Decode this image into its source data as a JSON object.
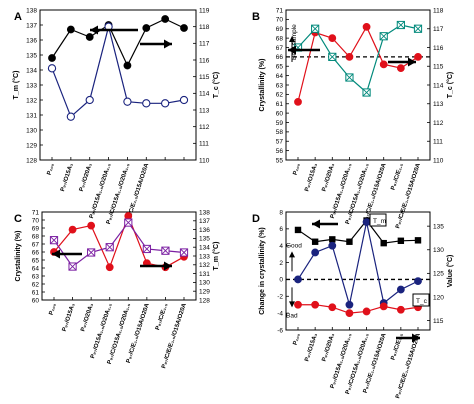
{
  "chart_data": [
    {
      "panel": "A",
      "type": "line",
      "categories": [
        "P100",
        "P97/O15A3",
        "P97/O20A3",
        "P97/O15A1.5/O20A1.5",
        "P97/C/O15A1.5/O20A1.5",
        "P97/C/E1.5/O15A1.5/O20A1.5",
        "P97/C/E/O15A1.5/O20A1.5",
        "P97/C/E/E1.5/O15A1.5/O20A1.5"
      ],
      "category_labels": [
        "P₁₀₀",
        "P₉₇/O15A₃",
        "P₉₇/O20A₃",
        "P₉₇/O15A₁.₅/O20A₁.₅",
        "P₉₇/C/O15A₁.₅/O20A₁.₅",
        "P₉₇/C/E₁.₅/O15A/O20A",
        "",
        ""
      ],
      "xlabel": "",
      "ylabel": "T_m (°C)",
      "y2label": "T_c (°C)",
      "ylim": [
        128,
        138
      ],
      "y2lim": [
        110,
        119
      ],
      "yticks": [
        128,
        129,
        130,
        131,
        132,
        133,
        134,
        135,
        136,
        137,
        138
      ],
      "y2ticks": [
        110,
        111,
        112,
        113,
        114,
        115,
        116,
        117,
        118,
        119
      ],
      "series": [
        {
          "axis": "left",
          "color": "#000000",
          "marker": "filled-circle",
          "values": [
            134.8,
            136.7,
            136.2,
            137.0,
            134.3,
            136.8,
            137.4,
            136.8
          ]
        },
        {
          "axis": "right",
          "color": "#1a237e",
          "marker": "open-circle",
          "values": [
            115.5,
            112.6,
            113.6,
            118.0,
            113.5,
            113.4,
            113.4,
            113.6
          ]
        }
      ],
      "arrows": [
        {
          "direction": "left",
          "target": "left-axis"
        },
        {
          "direction": "right",
          "target": "right-axis"
        }
      ]
    },
    {
      "panel": "B",
      "type": "line",
      "categories": [
        "P100",
        "P97/O15A3",
        "P97/O20A3",
        "P97/O15A1.5/O20A1.5",
        "P97/C/O15A1.5/O20A1.5",
        "P97/C/E1.5/O15A1.5/O20A1.5",
        "P97/C/E/O15A1.5/O20A1.5",
        "P97/C/E/E1.5/O15A1.5/O20A1.5"
      ],
      "category_labels": [
        "P₁₀₀",
        "P₉₇/O15A₃",
        "P₉₇/O20A₃",
        "P₉₇/O15A₁.₅/O20A₁.₅",
        "P₉₇/C/O15A₁.₅/O20A₁.₅",
        "P₉₇/C/E₁.₅/O15A/O20A",
        "P₉₇/C/E₁.₅",
        "P₉₇/C/E/E₁.₅/O15A/O20A"
      ],
      "xlabel": "",
      "ylabel": "Crystallinity (%)",
      "y2label": "T_c (°C)",
      "ylim": [
        55,
        71
      ],
      "y2lim": [
        110,
        118
      ],
      "yticks": [
        55,
        56,
        57,
        58,
        59,
        60,
        61,
        62,
        63,
        64,
        65,
        66,
        67,
        68,
        69,
        70,
        71
      ],
      "y2ticks": [
        110,
        111,
        112,
        113,
        114,
        115,
        116,
        117,
        118
      ],
      "annotations": [
        "Best sample"
      ],
      "reference_line": {
        "axis": "left",
        "value": 66
      },
      "series": [
        {
          "axis": "left",
          "color": "#e0101a",
          "marker": "filled-circle",
          "values": [
            61.2,
            68.6,
            68.0,
            66.0,
            69.2,
            65.2,
            64.8,
            66.0
          ]
        },
        {
          "axis": "right",
          "color": "#00897b",
          "marker": "crossed-square",
          "values": [
            116.0,
            117.0,
            115.5,
            114.4,
            113.6,
            116.6,
            117.2,
            117.0
          ]
        }
      ],
      "arrows": [
        {
          "direction": "left",
          "target": "left-axis"
        },
        {
          "direction": "right",
          "target": "right-axis"
        }
      ]
    },
    {
      "panel": "C",
      "type": "line",
      "categories": [
        "P100",
        "P97/O15A3",
        "P97/O20A3",
        "P97/O15A1.5/O20A1.5",
        "P97/C/O15A1.5/O20A1.5",
        "P97/C/E1.5/O15A1.5/O20A1.5",
        "P97/C/E/O15A1.5/O20A1.5",
        "P97/C/E/E1.5/O15A1.5/O20A1.5"
      ],
      "category_labels": [
        "P₁₀₀",
        "P₉₇/O15A₃",
        "P₉₇/O20A₃",
        "P₉₇/O15A₁.₅/O20A₁.₅",
        "P₉₇/C/O15A₁.₅/O20A₁.₅",
        "P₉₇/C/E₁.₅/O15A/O20A",
        "P₉₇/C/E₁.₅",
        "P₉₇/C/E/E₁.₅/O15A/O20A"
      ],
      "xlabel": "",
      "ylabel": "Crystalinity (%)",
      "y2label": "T_m (°C)",
      "ylim": [
        60,
        71
      ],
      "y2lim": [
        128,
        138
      ],
      "yticks": [
        60,
        61,
        62,
        63,
        64,
        65,
        66,
        67,
        68,
        69,
        70,
        71
      ],
      "y2ticks": [
        128,
        129,
        130,
        131,
        132,
        133,
        134,
        135,
        136,
        137,
        138
      ],
      "series": [
        {
          "axis": "left",
          "color": "#e0101a",
          "marker": "filled-circle",
          "values": [
            66.0,
            68.8,
            69.3,
            64.1,
            70.5,
            64.6,
            64.1,
            65.4
          ]
        },
        {
          "axis": "right",
          "color": "#7b1fa2",
          "marker": "crossed-square",
          "values": [
            134.8,
            131.8,
            133.4,
            134.0,
            136.8,
            133.8,
            133.6,
            133.4
          ]
        }
      ],
      "arrows": [
        {
          "direction": "left",
          "target": "left-axis"
        },
        {
          "direction": "right",
          "target": "right-axis"
        }
      ]
    },
    {
      "panel": "D",
      "type": "line",
      "categories": [
        "P100",
        "P97/O15A3",
        "P97/O20A3",
        "P97/O15A1.5/O20A1.5",
        "P97/C/O15A1.5/O20A1.5",
        "P97/C/E1.5/O15A1.5/O20A1.5",
        "P97/C/E/O15A1.5/O20A1.5",
        "P97/C/E/E1.5/O15A1.5/O20A1.5"
      ],
      "category_labels": [
        "P₁₀₀",
        "P₉₇/O15A₃",
        "P₉₇/O20A₃",
        "P₉₇/O15A₁.₅/O20A₁.₅",
        "P₉₇/C/O15A₁.₅/O20A₁.₅",
        "P₉₇/C/E₁.₅/O15A/O20A",
        "P₉₇/C/E₁.₅",
        "P₉₇/C/E/E₁.₅/O15A/O20A"
      ],
      "xlabel": "",
      "ylabel": "Change in crystallinity (%)",
      "y2label": "Value (°C)",
      "ylim": [
        -6,
        8
      ],
      "y2lim": [
        113,
        138
      ],
      "yticks": [
        -6,
        -4,
        -2,
        0,
        2,
        4,
        6,
        8
      ],
      "y2ticks": [
        115,
        120,
        125,
        130,
        135
      ],
      "annotations": [
        "Good",
        "Bad",
        "T_m",
        "T_c"
      ],
      "reference_line": {
        "axis": "left",
        "value": 0
      },
      "series": [
        {
          "name": "T_m",
          "axis": "right",
          "color": "#000000",
          "marker": "filled-square",
          "values": [
            134.2,
            131.7,
            132.2,
            131.7,
            136.2,
            131.4,
            131.9,
            132.0
          ]
        },
        {
          "axis": "left",
          "color": "#1a237e",
          "marker": "filled-circle",
          "values": [
            0.0,
            3.2,
            4.0,
            -3.0,
            6.8,
            -2.8,
            -1.2,
            -0.2
          ]
        },
        {
          "name": "T_c",
          "axis": "left",
          "color": "#e0101a",
          "marker": "filled-circle",
          "values": [
            -3.0,
            -3.0,
            -3.3,
            -4.0,
            -3.8,
            -3.2,
            -3.6,
            -3.3
          ]
        }
      ],
      "arrows": [
        {
          "direction": "left",
          "target": "left-axis"
        },
        {
          "direction": "right",
          "target": "right-axis"
        }
      ]
    }
  ]
}
